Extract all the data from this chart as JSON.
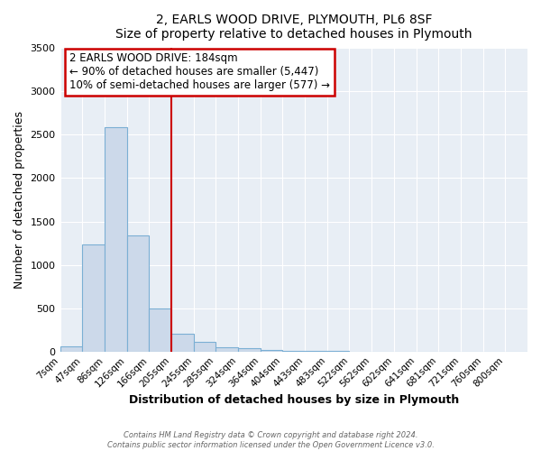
{
  "title": "2, EARLS WOOD DRIVE, PLYMOUTH, PL6 8SF",
  "subtitle": "Size of property relative to detached houses in Plymouth",
  "xlabel": "Distribution of detached houses by size in Plymouth",
  "ylabel": "Number of detached properties",
  "bar_labels": [
    "7sqm",
    "47sqm",
    "86sqm",
    "126sqm",
    "166sqm",
    "205sqm",
    "245sqm",
    "285sqm",
    "324sqm",
    "364sqm",
    "404sqm",
    "443sqm",
    "483sqm",
    "522sqm",
    "562sqm",
    "602sqm",
    "641sqm",
    "681sqm",
    "721sqm",
    "760sqm",
    "800sqm"
  ],
  "bar_values": [
    55,
    1230,
    2590,
    1340,
    500,
    205,
    115,
    50,
    35,
    20,
    10,
    5,
    3,
    0,
    0,
    0,
    0,
    0,
    0,
    0,
    0
  ],
  "bar_color": "#ccd9ea",
  "bar_edge_color": "#7bafd4",
  "vline_x_index": 4,
  "vline_color": "#cc0000",
  "ylim": [
    0,
    3500
  ],
  "annotation_title": "2 EARLS WOOD DRIVE: 184sqm",
  "annotation_line1": "← 90% of detached houses are smaller (5,447)",
  "annotation_line2": "10% of semi-detached houses are larger (577) →",
  "annotation_box_color": "#cc0000",
  "ax_facecolor": "#e8eef5",
  "grid_color": "#ffffff",
  "footer1": "Contains HM Land Registry data © Crown copyright and database right 2024.",
  "footer2": "Contains public sector information licensed under the Open Government Licence v3.0."
}
